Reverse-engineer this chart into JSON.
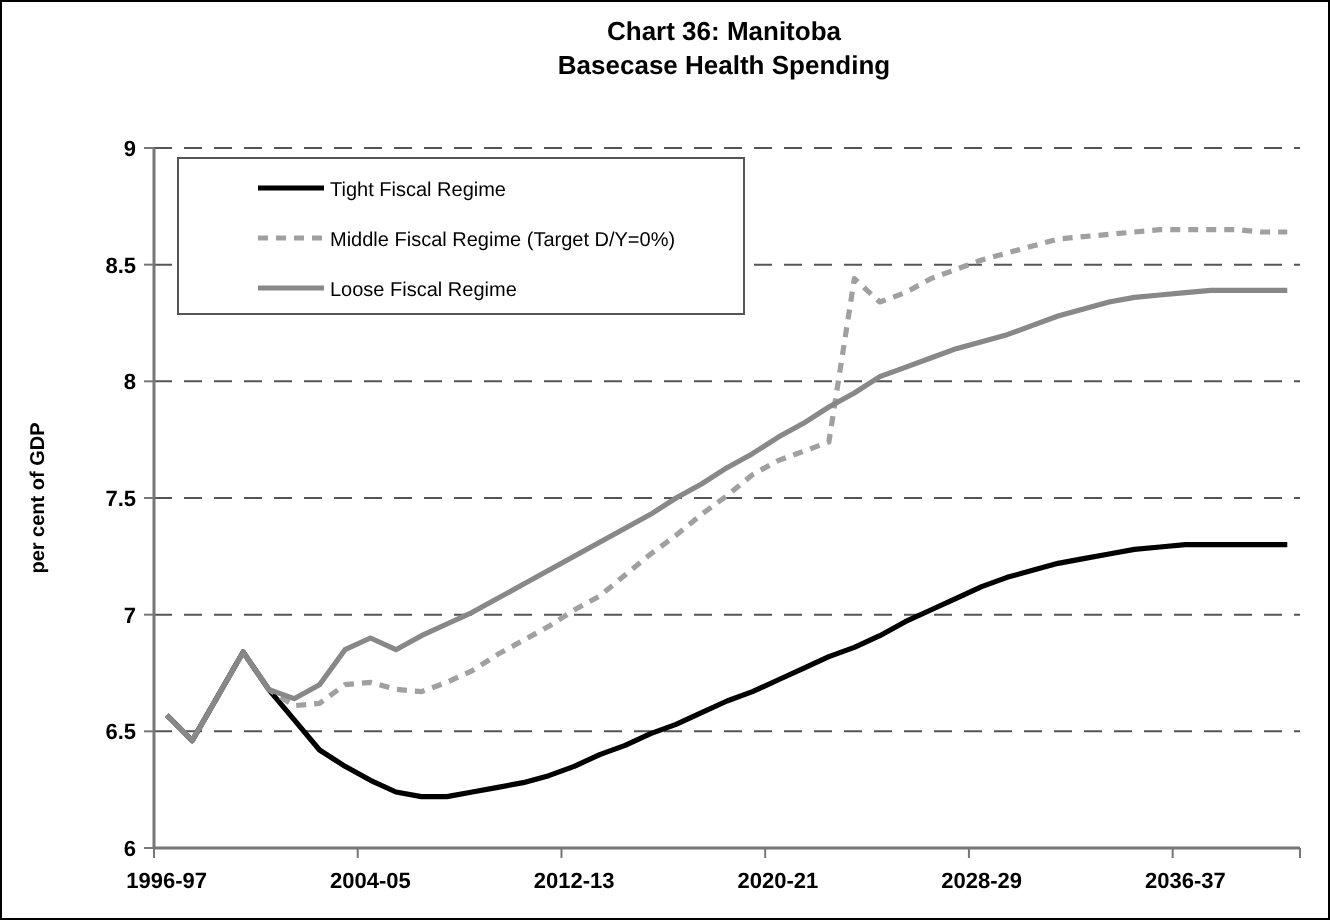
{
  "chart_data": {
    "type": "line",
    "title": "Chart 36: Manitoba\nBasecase Health Spending",
    "ylabel": "per cent of GDP",
    "categories": [
      "1996-97",
      null,
      null,
      null,
      null,
      null,
      null,
      null,
      "2004-05",
      null,
      null,
      null,
      null,
      null,
      null,
      null,
      "2012-13",
      null,
      null,
      null,
      null,
      null,
      null,
      null,
      "2020-21",
      null,
      null,
      null,
      null,
      null,
      null,
      null,
      "2028-29",
      null,
      null,
      null,
      null,
      null,
      null,
      null,
      "2036-37",
      null,
      null,
      null,
      null
    ],
    "ylim": [
      6,
      9
    ],
    "yticks": [
      6,
      6.5,
      7,
      7.5,
      8,
      8.5,
      9
    ],
    "grid": "y",
    "legend": "top left",
    "marker": "none",
    "series": [
      {
        "name": "Tight Fiscal Regime",
        "color": "#000000",
        "line_style": "solid",
        "values": [
          6.57,
          6.46,
          6.65,
          6.84,
          6.68,
          6.55,
          6.42,
          6.35,
          6.29,
          6.24,
          6.22,
          6.22,
          6.24,
          6.26,
          6.28,
          6.31,
          6.35,
          6.4,
          6.44,
          6.49,
          6.53,
          6.58,
          6.63,
          6.67,
          6.72,
          6.77,
          6.82,
          6.86,
          6.91,
          6.97,
          7.02,
          7.07,
          7.12,
          7.16,
          7.19,
          7.22,
          7.24,
          7.26,
          7.28,
          7.29,
          7.3,
          7.3,
          7.3,
          7.3,
          7.3
        ]
      },
      {
        "name": "Middle Fiscal Regime (Target D/Y=0%)",
        "color": "#a0a0a0",
        "line_style": "dashed",
        "values": [
          6.57,
          6.46,
          6.65,
          6.84,
          6.68,
          6.61,
          6.62,
          6.7,
          6.71,
          6.68,
          6.67,
          6.71,
          6.76,
          6.83,
          6.89,
          6.95,
          7.02,
          7.08,
          7.17,
          7.26,
          7.34,
          7.43,
          7.51,
          7.6,
          7.66,
          7.7,
          7.74,
          8.44,
          8.34,
          8.38,
          8.44,
          8.48,
          8.52,
          8.55,
          8.58,
          8.61,
          8.62,
          8.63,
          8.64,
          8.65,
          8.65,
          8.65,
          8.65,
          8.64,
          8.64
        ]
      },
      {
        "name": "Loose Fiscal Regime",
        "color": "#888888",
        "line_style": "solid",
        "values": [
          6.57,
          6.46,
          6.65,
          6.84,
          6.68,
          6.64,
          6.7,
          6.85,
          6.9,
          6.85,
          6.91,
          6.96,
          7.01,
          7.07,
          7.13,
          7.19,
          7.25,
          7.31,
          7.37,
          7.43,
          7.5,
          7.56,
          7.63,
          7.69,
          7.76,
          7.82,
          7.89,
          7.95,
          8.02,
          8.06,
          8.1,
          8.14,
          8.17,
          8.2,
          8.24,
          8.28,
          8.31,
          8.34,
          8.36,
          8.37,
          8.38,
          8.39,
          8.39,
          8.39,
          8.39
        ]
      }
    ]
  }
}
